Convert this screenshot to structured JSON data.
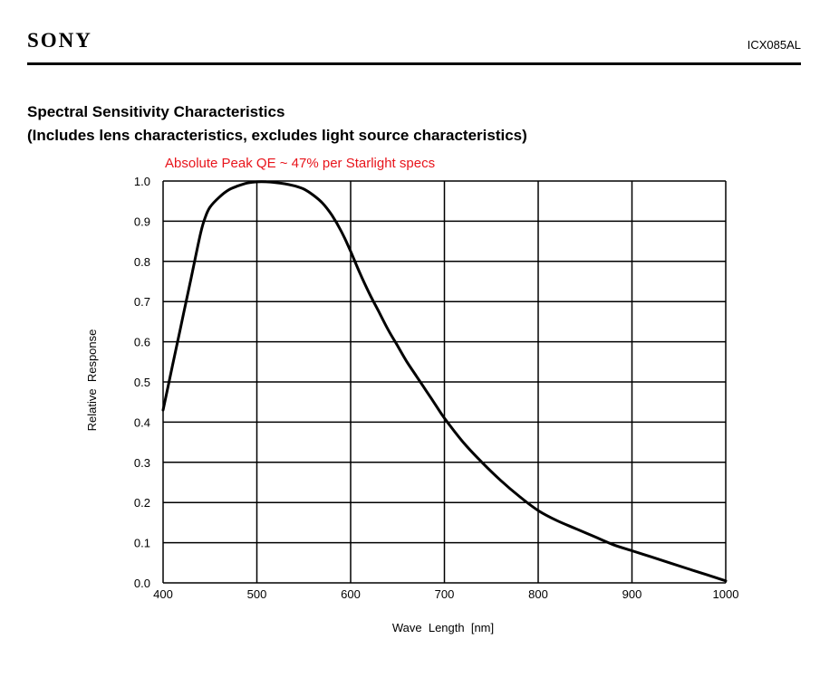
{
  "header": {
    "brand": "SONY",
    "part_number": "ICX085AL"
  },
  "section": {
    "title_line1": "Spectral Sensitivity Characteristics",
    "title_line2": "(Includes lens characteristics, excludes light source characteristics)"
  },
  "chart_data": {
    "type": "line",
    "title": "",
    "annotation": "Absolute Peak QE ~ 47% per Starlight specs",
    "annotation_color": "#e8141b",
    "xlabel": "Wave  Length  [nm]",
    "ylabel": "Relative  Response",
    "xlim": [
      400,
      1000
    ],
    "ylim": [
      0.0,
      1.0
    ],
    "xticks": [
      400,
      500,
      600,
      700,
      800,
      900,
      1000
    ],
    "yticks": [
      0.0,
      0.1,
      0.2,
      0.3,
      0.4,
      0.5,
      0.6,
      0.7,
      0.8,
      0.9,
      1.0
    ],
    "xtick_labels": [
      "400",
      "500",
      "600",
      "700",
      "800",
      "900",
      "1000"
    ],
    "ytick_labels": [
      "0.0",
      "0.1",
      "0.2",
      "0.3",
      "0.4",
      "0.5",
      "0.6",
      "0.7",
      "0.8",
      "0.9",
      "1.0"
    ],
    "grid": true,
    "line_color": "#000000",
    "series": [
      {
        "x": [
          400,
          410,
          420,
          430,
          440,
          445,
          450,
          460,
          470,
          480,
          490,
          500,
          510,
          520,
          530,
          540,
          550,
          560,
          570,
          580,
          590,
          600,
          610,
          620,
          630,
          640,
          650,
          660,
          670,
          680,
          690,
          700,
          720,
          740,
          760,
          780,
          800,
          820,
          840,
          860,
          880,
          900,
          920,
          940,
          960,
          980,
          1000
        ],
        "y": [
          0.43,
          0.54,
          0.65,
          0.76,
          0.87,
          0.91,
          0.935,
          0.96,
          0.978,
          0.988,
          0.995,
          0.998,
          0.998,
          0.996,
          0.993,
          0.988,
          0.98,
          0.965,
          0.945,
          0.915,
          0.875,
          0.825,
          0.77,
          0.72,
          0.675,
          0.63,
          0.59,
          0.55,
          0.515,
          0.48,
          0.445,
          0.41,
          0.35,
          0.3,
          0.255,
          0.215,
          0.18,
          0.155,
          0.135,
          0.115,
          0.095,
          0.08,
          0.065,
          0.05,
          0.035,
          0.02,
          0.005
        ]
      }
    ]
  }
}
